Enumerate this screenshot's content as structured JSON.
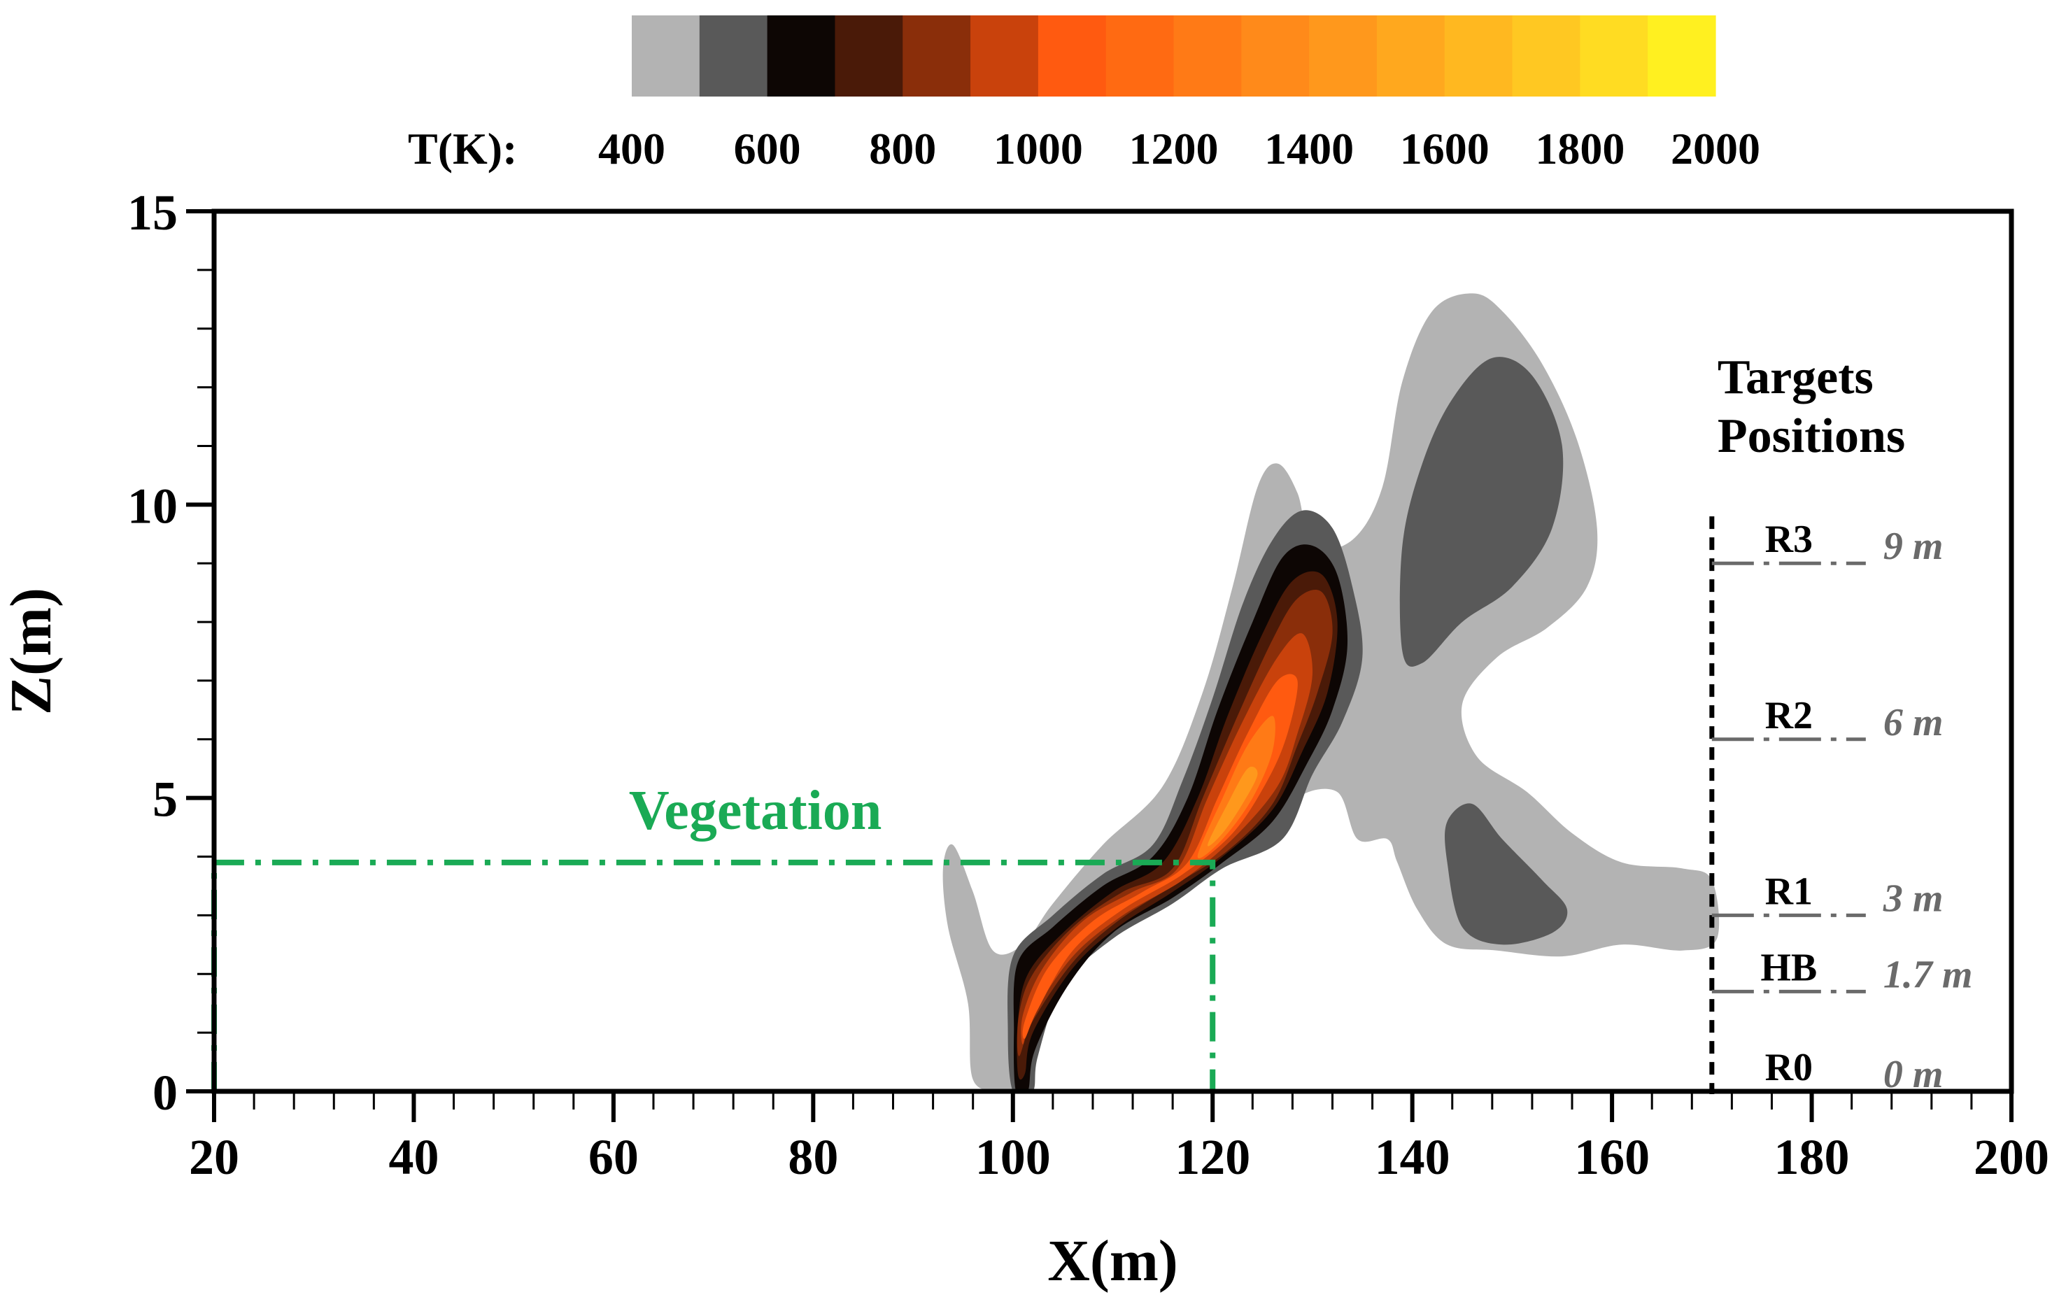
{
  "chart_data": {
    "type": "heatmap",
    "title": "",
    "xlabel": "X(m)",
    "ylabel": "Z(m)",
    "xlim": [
      20,
      200
    ],
    "ylim": [
      0,
      15
    ],
    "x_ticks": [
      20,
      40,
      60,
      80,
      100,
      120,
      140,
      160,
      180,
      200
    ],
    "y_ticks": [
      0,
      5,
      10,
      15
    ],
    "grid": false,
    "colorbar": {
      "label": "T(K):",
      "tick_labels": [
        "400",
        "600",
        "800",
        "1000",
        "1200",
        "1400",
        "1600",
        "1800",
        "2000"
      ],
      "levels": [
        400,
        500,
        600,
        700,
        800,
        900,
        1000,
        1100,
        1200,
        1300,
        1400,
        1500,
        1600,
        1700,
        1800,
        1900,
        2000
      ],
      "colors": [
        "#b3b3b3",
        "#595959",
        "#0d0604",
        "#4a1a08",
        "#8a2e0a",
        "#c9420c",
        "#ff5a10",
        "#ff6a12",
        "#ff7a16",
        "#ff8a1a",
        "#ff981c",
        "#ffa81e",
        "#ffb820",
        "#ffc822",
        "#ffdc22",
        "#fff020"
      ]
    },
    "contours": [
      {
        "level": 400,
        "color": "#b3b3b3",
        "points": [
          [
            99,
            0
          ],
          [
            96,
            0.2
          ],
          [
            95.5,
            1.5
          ],
          [
            93.5,
            2.8
          ],
          [
            93,
            3.8
          ],
          [
            94,
            4.2
          ],
          [
            96,
            3.4
          ],
          [
            98,
            2.4
          ],
          [
            101,
            2.5
          ],
          [
            104,
            3.2
          ],
          [
            109,
            4.2
          ],
          [
            115,
            5.2
          ],
          [
            119,
            6.8
          ],
          [
            122,
            8.6
          ],
          [
            124.5,
            10.3
          ],
          [
            126.5,
            10.7
          ],
          [
            128.5,
            10.2
          ],
          [
            130,
            9.3
          ],
          [
            134,
            9.4
          ],
          [
            137,
            10.3
          ],
          [
            139,
            12.1
          ],
          [
            142,
            13.3
          ],
          [
            146,
            13.6
          ],
          [
            149,
            13.3
          ],
          [
            153,
            12.4
          ],
          [
            156.5,
            11.1
          ],
          [
            158.5,
            9.6
          ],
          [
            157.5,
            8.6
          ],
          [
            153.5,
            7.9
          ],
          [
            148.5,
            7.4
          ],
          [
            145,
            6.6
          ],
          [
            146.5,
            5.7
          ],
          [
            151.5,
            5.1
          ],
          [
            156,
            4.4
          ],
          [
            161,
            3.9
          ],
          [
            167,
            3.8
          ],
          [
            170,
            3.6
          ],
          [
            170.5,
            2.6
          ],
          [
            167,
            2.4
          ],
          [
            161,
            2.5
          ],
          [
            155,
            2.3
          ],
          [
            148.5,
            2.4
          ],
          [
            143.5,
            2.5
          ],
          [
            140.5,
            3.1
          ],
          [
            138.5,
            3.9
          ],
          [
            137.5,
            4.3
          ],
          [
            134.5,
            4.3
          ],
          [
            132.5,
            5.1
          ],
          [
            128.5,
            5.0
          ],
          [
            126.5,
            4.3
          ],
          [
            123.5,
            4.3
          ],
          [
            119,
            3.7
          ],
          [
            112,
            3.0
          ],
          [
            106,
            2.2
          ],
          [
            103,
            1.2
          ],
          [
            101,
            0
          ]
        ]
      },
      {
        "level": 500,
        "color": "#595959",
        "points": [
          [
            139,
            7.5
          ],
          [
            139,
            9.3
          ],
          [
            141,
            10.7
          ],
          [
            144,
            11.8
          ],
          [
            148,
            12.5
          ],
          [
            152,
            12.2
          ],
          [
            155,
            11.0
          ],
          [
            154,
            9.6
          ],
          [
            150,
            8.6
          ],
          [
            145,
            8.0
          ],
          [
            141,
            7.3
          ]
        ]
      },
      {
        "level": 500,
        "color": "#595959",
        "points": [
          [
            143.5,
            3.9
          ],
          [
            143.5,
            4.6
          ],
          [
            146,
            4.9
          ],
          [
            149,
            4.3
          ],
          [
            153,
            3.6
          ],
          [
            155.5,
            3.1
          ],
          [
            154,
            2.7
          ],
          [
            149,
            2.5
          ],
          [
            145,
            2.8
          ]
        ]
      },
      {
        "level": 500,
        "color": "#595959",
        "points": [
          [
            100,
            0
          ],
          [
            99.5,
            1.0
          ],
          [
            100,
            2.3
          ],
          [
            104,
            3.0
          ],
          [
            109,
            3.7
          ],
          [
            114,
            4.2
          ],
          [
            117,
            5.3
          ],
          [
            120,
            6.7
          ],
          [
            123,
            8.3
          ],
          [
            126,
            9.4
          ],
          [
            129,
            9.9
          ],
          [
            132,
            9.6
          ],
          [
            134,
            8.6
          ],
          [
            135,
            7.4
          ],
          [
            133,
            6.3
          ],
          [
            130,
            5.4
          ],
          [
            127,
            4.3
          ],
          [
            121,
            3.8
          ],
          [
            116,
            3.2
          ],
          [
            110,
            2.6
          ],
          [
            105,
            1.8
          ],
          [
            102.5,
            0.6
          ],
          [
            102,
            0
          ]
        ]
      },
      {
        "level": 600,
        "color": "#0d0604",
        "points": [
          [
            100.3,
            0
          ],
          [
            100.1,
            1.0
          ],
          [
            100.5,
            2.2
          ],
          [
            104,
            2.8
          ],
          [
            109,
            3.5
          ],
          [
            114,
            4.0
          ],
          [
            117.5,
            5.0
          ],
          [
            120.5,
            6.5
          ],
          [
            124,
            8.0
          ],
          [
            127,
            9.1
          ],
          [
            130,
            9.3
          ],
          [
            132.5,
            8.8
          ],
          [
            133.5,
            7.6
          ],
          [
            132,
            6.5
          ],
          [
            129.5,
            5.6
          ],
          [
            126,
            4.6
          ],
          [
            121,
            3.9
          ],
          [
            116,
            3.3
          ],
          [
            110,
            2.7
          ],
          [
            105.5,
            1.8
          ],
          [
            102.2,
            0.7
          ],
          [
            101.5,
            0
          ]
        ]
      },
      {
        "level": 700,
        "color": "#4a1a08",
        "points": [
          [
            100.5,
            0.3
          ],
          [
            100.5,
            1.2
          ],
          [
            101.5,
            2.0
          ],
          [
            105,
            2.7
          ],
          [
            110,
            3.4
          ],
          [
            115,
            3.9
          ],
          [
            118.5,
            5.0
          ],
          [
            121.5,
            6.4
          ],
          [
            125,
            7.8
          ],
          [
            128,
            8.7
          ],
          [
            131,
            8.8
          ],
          [
            132.5,
            8.0
          ],
          [
            131.5,
            6.8
          ],
          [
            129,
            5.8
          ],
          [
            126,
            4.8
          ],
          [
            121,
            4.0
          ],
          [
            116,
            3.4
          ],
          [
            110.5,
            2.8
          ],
          [
            106,
            2.1
          ],
          [
            102,
            1.0
          ],
          [
            101.2,
            0.3
          ]
        ]
      },
      {
        "level": 800,
        "color": "#8a2e0a",
        "points": [
          [
            100.6,
            0.6
          ],
          [
            100.6,
            1.3
          ],
          [
            102,
            2.0
          ],
          [
            106,
            2.8
          ],
          [
            111,
            3.4
          ],
          [
            116,
            3.8
          ],
          [
            119,
            5.0
          ],
          [
            122.5,
            6.4
          ],
          [
            126,
            7.7
          ],
          [
            128.5,
            8.4
          ],
          [
            131,
            8.5
          ],
          [
            132,
            7.8
          ],
          [
            130.5,
            6.8
          ],
          [
            128.5,
            5.9
          ],
          [
            126,
            4.9
          ],
          [
            121.5,
            4.1
          ],
          [
            116,
            3.5
          ],
          [
            110.5,
            2.9
          ],
          [
            106,
            2.2
          ],
          [
            102,
            1.2
          ]
        ]
      },
      {
        "level": 900,
        "color": "#c9420c",
        "points": [
          [
            101,
            0.8
          ],
          [
            101,
            1.3
          ],
          [
            103,
            2.1
          ],
          [
            107,
            2.9
          ],
          [
            112,
            3.4
          ],
          [
            116.5,
            3.8
          ],
          [
            119.5,
            5.0
          ],
          [
            123,
            6.3
          ],
          [
            126.5,
            7.4
          ],
          [
            129,
            7.8
          ],
          [
            130,
            7.1
          ],
          [
            128.5,
            6.1
          ],
          [
            126.5,
            5.2
          ],
          [
            122,
            4.3
          ],
          [
            117,
            3.6
          ],
          [
            111,
            3.0
          ],
          [
            106,
            2.3
          ],
          [
            102,
            1.3
          ]
        ]
      },
      {
        "level": 1000,
        "color": "#ff5a10",
        "points": [
          [
            101.2,
            0.9
          ],
          [
            101.2,
            1.2
          ],
          [
            103.5,
            2.1
          ],
          [
            108,
            2.9
          ],
          [
            113,
            3.4
          ],
          [
            117.5,
            3.9
          ],
          [
            120.5,
            5.0
          ],
          [
            123.5,
            6.1
          ],
          [
            126.5,
            7.0
          ],
          [
            128.5,
            7.0
          ],
          [
            127.5,
            6.1
          ],
          [
            125.5,
            5.3
          ],
          [
            122,
            4.4
          ],
          [
            117,
            3.7
          ],
          [
            111,
            3.1
          ],
          [
            106,
            2.4
          ],
          [
            102.5,
            1.4
          ]
        ]
      },
      {
        "level": 1100,
        "color": "#ff7a16",
        "points": [
          [
            118.5,
            4.0
          ],
          [
            121,
            5.0
          ],
          [
            123.5,
            5.9
          ],
          [
            126,
            6.4
          ],
          [
            126,
            5.8
          ],
          [
            124,
            5.0
          ],
          [
            121,
            4.3
          ]
        ]
      },
      {
        "level": 1200,
        "color": "#ff981c",
        "points": [
          [
            119.5,
            4.2
          ],
          [
            121.5,
            4.9
          ],
          [
            123.5,
            5.5
          ],
          [
            124.5,
            5.4
          ],
          [
            123,
            4.9
          ],
          [
            121,
            4.4
          ]
        ]
      }
    ],
    "annotations": {
      "vegetation": {
        "label": "Vegetation",
        "x_range": [
          20,
          120
        ],
        "z_top": 3.9,
        "color": "#1aaa55"
      },
      "targets_title_line1": "Targets",
      "targets_title_line2": "Positions",
      "targets_mast_x": 170,
      "targets": [
        {
          "name": "R3",
          "height_label": "9 m",
          "z": 9
        },
        {
          "name": "R2",
          "height_label": "6 m",
          "z": 6
        },
        {
          "name": "R1",
          "height_label": "3 m",
          "z": 3
        },
        {
          "name": "HB",
          "height_label": "1.7 m",
          "z": 1.7
        },
        {
          "name": "R0",
          "height_label": "0 m",
          "z": 0
        }
      ]
    }
  }
}
